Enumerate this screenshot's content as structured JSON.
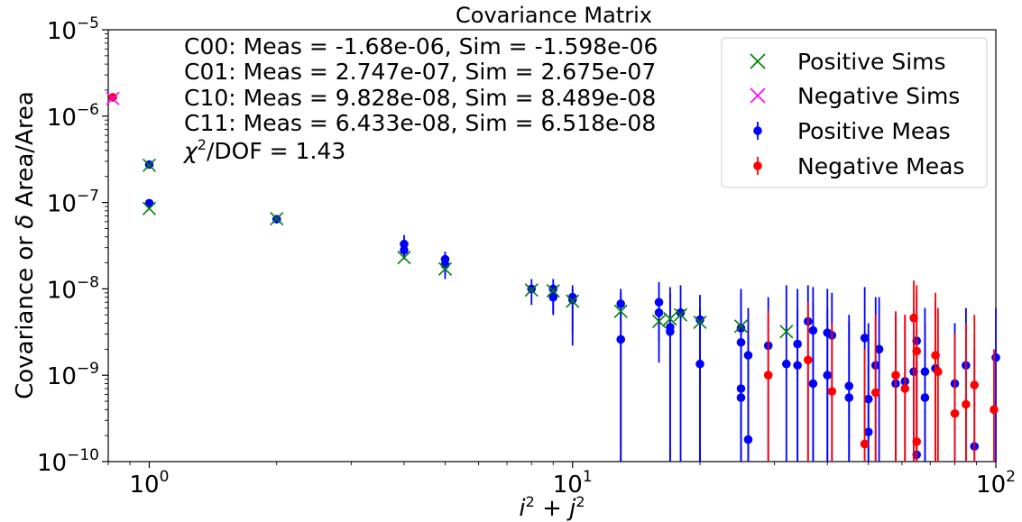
{
  "chart_data": {
    "type": "scatter",
    "title": "Covariance Matrix",
    "xlabel": "i² + j²",
    "ylabel": "Covariance or δ Area/Area",
    "xscale": "log",
    "yscale": "log",
    "xlim": [
      0.8,
      100
    ],
    "ylim": [
      1e-10,
      1e-05
    ],
    "grid": false,
    "legend_position": "top-right",
    "x_ticks": [
      {
        "value": 1,
        "base": "10",
        "exp": "0"
      },
      {
        "value": 10,
        "base": "10",
        "exp": "1"
      },
      {
        "value": 100,
        "base": "10",
        "exp": "2"
      }
    ],
    "y_ticks": [
      {
        "value": 1e-10,
        "base": "10",
        "exp": "−10"
      },
      {
        "value": 1e-09,
        "base": "10",
        "exp": "−9"
      },
      {
        "value": 1e-08,
        "base": "10",
        "exp": "−8"
      },
      {
        "value": 1e-07,
        "base": "10",
        "exp": "−7"
      },
      {
        "value": 1e-06,
        "base": "10",
        "exp": "−6"
      },
      {
        "value": 1e-05,
        "base": "10",
        "exp": "−5"
      }
    ],
    "annotations": [
      "C00: Meas = -1.68e-06, Sim = -1.598e-06",
      "C01: Meas = 2.747e-07, Sim = 2.675e-07",
      "C10: Meas = 9.828e-08, Sim = 8.489e-08",
      "C11: Meas = 6.433e-08, Sim = 6.518e-08"
    ],
    "chi2": {
      "symbol": "χ",
      "sup": "2",
      "rest": "/DOF = 1.43"
    },
    "colors": {
      "positive_sims": "#008000",
      "negative_sims": "#ff00ff",
      "positive_meas": "#0000ff",
      "negative_meas": "#ff0000"
    },
    "legend": [
      {
        "label": "Positive Sims",
        "marker": "x",
        "color": "#008000"
      },
      {
        "label": "Negative Sims",
        "marker": "x",
        "color": "#ff00ff"
      },
      {
        "label": "Positive Meas",
        "marker": "errorbar",
        "color": "#0000ff"
      },
      {
        "label": "Negative Meas",
        "marker": "errorbar",
        "color": "#ff0000"
      }
    ],
    "series": [
      {
        "name": "Positive Sims",
        "marker": "x",
        "points": [
          [
            1,
            2.7e-07
          ],
          [
            1,
            8.5e-08
          ],
          [
            2,
            6.5e-08
          ],
          [
            4,
            2.3e-08
          ],
          [
            5,
            1.7e-08
          ],
          [
            8,
            9.7e-09
          ],
          [
            9,
            9.5e-09
          ],
          [
            10,
            7.2e-09
          ],
          [
            13,
            5.5e-09
          ],
          [
            16,
            4.2e-09
          ],
          [
            17,
            4.5e-09
          ],
          [
            18,
            5e-09
          ],
          [
            20,
            4.1e-09
          ],
          [
            25,
            3.7e-09
          ],
          [
            32,
            3.2e-09
          ]
        ]
      },
      {
        "name": "Negative Sims",
        "marker": "x",
        "points": [
          [
            0.82,
            1.6e-06
          ]
        ]
      },
      {
        "name": "Positive Meas",
        "marker": "errorbar",
        "points": [
          {
            "x": 1,
            "y": 2.75e-07
          },
          {
            "x": 1,
            "y": 9.8e-08
          },
          {
            "x": 2,
            "y": 6.4e-08
          },
          {
            "x": 4,
            "y": 3.3e-08,
            "lo": 2.4e-08,
            "hi": 4.2e-08
          },
          {
            "x": 4,
            "y": 2.8e-08,
            "lo": 2.2e-08,
            "hi": 3.5e-08
          },
          {
            "x": 5,
            "y": 2.2e-08,
            "lo": 1.5e-08,
            "hi": 2.7e-08
          },
          {
            "x": 5,
            "y": 1.9e-08,
            "lo": 1.3e-08,
            "hi": 2.5e-08
          },
          {
            "x": 8,
            "y": 1e-08,
            "lo": 6.5e-09,
            "hi": 1.3e-08
          },
          {
            "x": 9,
            "y": 1e-08,
            "lo": 5e-09,
            "hi": 1.3e-08
          },
          {
            "x": 9,
            "y": 8e-09,
            "lo": 5e-09,
            "hi": 1.1e-08
          },
          {
            "x": 10,
            "y": 8e-09,
            "lo": 2.2e-09,
            "hi": 1.1e-08
          },
          {
            "x": 10,
            "y": 7.5e-09,
            "lo": 3e-09,
            "hi": 1e-08
          },
          {
            "x": 13,
            "y": 6.7e-09,
            "lo": 1e-10,
            "hi": 1e-08
          },
          {
            "x": 13,
            "y": 2.6e-09,
            "lo": 1e-10,
            "hi": 9e-09
          },
          {
            "x": 16,
            "y": 7e-09,
            "lo": 1.4e-09,
            "hi": 1.2e-08
          },
          {
            "x": 16,
            "y": 5.3e-09,
            "lo": 2.5e-09,
            "hi": 8e-09
          },
          {
            "x": 17,
            "y": 3.6e-09,
            "lo": 1e-10,
            "hi": 1.05e-08
          },
          {
            "x": 17,
            "y": 3.2e-09,
            "lo": 1e-10,
            "hi": 9e-09
          },
          {
            "x": 18,
            "y": 5.3e-09,
            "lo": 1e-10,
            "hi": 1.1e-08
          },
          {
            "x": 20,
            "y": 4.4e-09,
            "lo": 1e-10,
            "hi": 8.5e-09
          },
          {
            "x": 20,
            "y": 1.35e-09,
            "lo": 1e-10,
            "hi": 6e-09
          },
          {
            "x": 25,
            "y": 3.5e-09,
            "lo": 1e-10,
            "hi": 1e-08
          },
          {
            "x": 25,
            "y": 2.4e-09,
            "lo": 1e-10,
            "hi": 9e-09
          },
          {
            "x": 25,
            "y": 7e-10,
            "lo": 1e-10,
            "hi": 5e-09
          },
          {
            "x": 25,
            "y": 5.5e-10,
            "lo": 1e-10,
            "hi": 4e-09
          },
          {
            "x": 26,
            "y": 1.7e-09,
            "lo": 1e-10,
            "hi": 6e-09
          },
          {
            "x": 26,
            "y": 1.8e-10,
            "lo": 1e-10,
            "hi": 3e-09
          },
          {
            "x": 29,
            "y": 2.2e-09,
            "lo": 1e-10,
            "hi": 8e-09
          },
          {
            "x": 32,
            "y": 1.35e-09,
            "lo": 1e-10,
            "hi": 1.1e-08
          },
          {
            "x": 34,
            "y": 2.3e-09,
            "lo": 1e-10,
            "hi": 1e-08
          },
          {
            "x": 34,
            "y": 1.3e-09,
            "lo": 1e-10,
            "hi": 6e-09
          },
          {
            "x": 36,
            "y": 4.2e-09,
            "lo": 1e-10,
            "hi": 1.1e-08
          },
          {
            "x": 37,
            "y": 3.3e-09,
            "lo": 1e-10,
            "hi": 1.05e-08
          },
          {
            "x": 37,
            "y": 8e-10,
            "lo": 1e-10,
            "hi": 7e-09
          },
          {
            "x": 40,
            "y": 3.1e-09,
            "lo": 1e-10,
            "hi": 1e-08
          },
          {
            "x": 40,
            "y": 1e-09,
            "lo": 1e-10,
            "hi": 6e-09
          },
          {
            "x": 41,
            "y": 2.9e-09,
            "lo": 1e-10,
            "hi": 9e-09
          },
          {
            "x": 45,
            "y": 7.5e-10,
            "lo": 1e-10,
            "hi": 5e-09
          },
          {
            "x": 45,
            "y": 5.5e-10,
            "lo": 1e-10,
            "hi": 4e-09
          },
          {
            "x": 49,
            "y": 2.7e-09,
            "lo": 1e-10,
            "hi": 1.05e-08
          },
          {
            "x": 50,
            "y": 2.2e-10,
            "lo": 1e-10,
            "hi": 3e-09
          },
          {
            "x": 50,
            "y": 5.3e-10,
            "lo": 1e-10,
            "hi": 4e-09
          },
          {
            "x": 52,
            "y": 1.3e-09,
            "lo": 1e-10,
            "hi": 8e-09
          },
          {
            "x": 53,
            "y": 2e-09,
            "lo": 1e-10,
            "hi": 8e-09
          },
          {
            "x": 58,
            "y": 8e-10,
            "lo": 1e-10,
            "hi": 5e-09
          },
          {
            "x": 61,
            "y": 8.5e-10,
            "lo": 1e-10,
            "hi": 5e-09
          },
          {
            "x": 64,
            "y": 1.1e-09,
            "lo": 1e-10,
            "hi": 6e-09
          },
          {
            "x": 65,
            "y": 2.5e-09,
            "lo": 1e-10,
            "hi": 9e-09
          },
          {
            "x": 65,
            "y": 1.2e-10,
            "lo": 1e-10,
            "hi": 2e-09
          },
          {
            "x": 68,
            "y": 1.1e-09,
            "lo": 1e-10,
            "hi": 6e-09
          },
          {
            "x": 68,
            "y": 5.5e-10,
            "lo": 1e-10,
            "hi": 4e-09
          },
          {
            "x": 72,
            "y": 1.2e-09,
            "lo": 1e-10,
            "hi": 7e-09
          },
          {
            "x": 80,
            "y": 8e-10,
            "lo": 1e-10,
            "hi": 4e-09
          },
          {
            "x": 85,
            "y": 1.3e-09,
            "lo": 1e-10,
            "hi": 6e-09
          },
          {
            "x": 89,
            "y": 1.5e-10,
            "lo": 1e-10,
            "hi": 2e-09
          },
          {
            "x": 100,
            "y": 1.6e-09,
            "lo": 1e-10,
            "hi": 6e-09
          }
        ]
      },
      {
        "name": "Negative Meas",
        "marker": "errorbar",
        "points": [
          {
            "x": 0.82,
            "y": 1.65e-06
          },
          {
            "x": 29,
            "y": 1e-09,
            "lo": 1e-10,
            "hi": 5.5e-09
          },
          {
            "x": 36,
            "y": 1.5e-09,
            "lo": 1e-10,
            "hi": 7e-09
          },
          {
            "x": 41,
            "y": 6.5e-10,
            "lo": 1e-10,
            "hi": 4e-09
          },
          {
            "x": 49,
            "y": 1.6e-10,
            "lo": 1e-10,
            "hi": 2e-09
          },
          {
            "x": 52,
            "y": 6.3e-10,
            "lo": 1e-10,
            "hi": 5e-09
          },
          {
            "x": 58,
            "y": 1e-09,
            "lo": 1e-10,
            "hi": 5.5e-09
          },
          {
            "x": 61,
            "y": 7e-10,
            "lo": 1e-10,
            "hi": 5e-09
          },
          {
            "x": 64,
            "y": 4.6e-09,
            "lo": 1e-10,
            "hi": 1.25e-08
          },
          {
            "x": 65,
            "y": 1.9e-09,
            "lo": 1e-10,
            "hi": 1.1e-08
          },
          {
            "x": 65,
            "y": 1.7e-10,
            "lo": 1e-10,
            "hi": 2.5e-09
          },
          {
            "x": 72,
            "y": 1.7e-09,
            "lo": 1e-10,
            "hi": 9e-09
          },
          {
            "x": 73,
            "y": 1.1e-09,
            "lo": 1e-10,
            "hi": 6e-09
          },
          {
            "x": 80,
            "y": 3.6e-10,
            "lo": 1e-10,
            "hi": 3e-09
          },
          {
            "x": 85,
            "y": 4.6e-10,
            "lo": 1e-10,
            "hi": 4e-09
          },
          {
            "x": 89,
            "y": 7.7e-10,
            "lo": 1e-10,
            "hi": 5e-09
          },
          {
            "x": 99,
            "y": 4e-10,
            "lo": 1e-10,
            "hi": 2e-09
          }
        ]
      }
    ]
  }
}
